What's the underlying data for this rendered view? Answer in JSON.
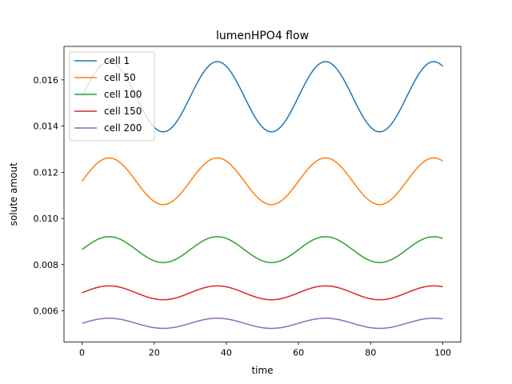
{
  "chart_data": {
    "type": "line",
    "title": "lumenHPO4 flow",
    "xlabel": "time",
    "ylabel": "solute amout",
    "xlim": [
      -5,
      105
    ],
    "ylim": [
      0.00465,
      0.01745
    ],
    "xticks": [
      0,
      20,
      40,
      60,
      80,
      100
    ],
    "yticks": [
      0.006,
      0.008,
      0.01,
      0.012,
      0.014,
      0.016
    ],
    "ytick_labels": [
      "0.006",
      "0.008",
      "0.010",
      "0.012",
      "0.014",
      "0.016"
    ],
    "grid": false,
    "legend": "top-left",
    "series": [
      {
        "name": "cell 1",
        "color": "#1f77b4",
        "mean": 0.01527,
        "amplitude": 0.00152,
        "period": 30,
        "phase_offset": 0
      },
      {
        "name": "cell 50",
        "color": "#ff7f0e",
        "mean": 0.01161,
        "amplitude": 0.00101,
        "period": 30,
        "phase_offset": 0
      },
      {
        "name": "cell 100",
        "color": "#2ca02c",
        "mean": 0.00865,
        "amplitude": 0.00056,
        "period": 30,
        "phase_offset": 0
      },
      {
        "name": "cell 150",
        "color": "#d62728",
        "mean": 0.00678,
        "amplitude": 0.0003,
        "period": 30,
        "phase_offset": 0
      },
      {
        "name": "cell 200",
        "color": "#9467bd",
        "mean": 0.00546,
        "amplitude": 0.00022,
        "period": 30,
        "phase_offset": 0
      }
    ]
  }
}
